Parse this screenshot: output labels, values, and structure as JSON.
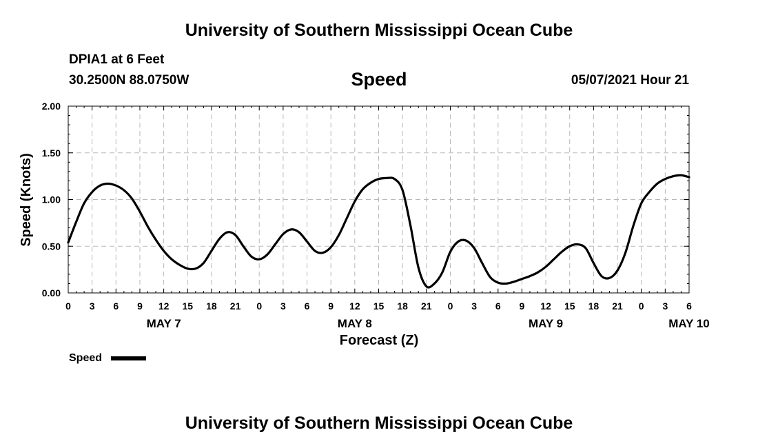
{
  "header": {
    "title": "University of Southern Mississippi Ocean Cube",
    "station": "DPIA1 at 6 Feet",
    "coordinates": "30.2500N  88.0750W",
    "issued": "05/07/2021 Hour 21"
  },
  "footer": {
    "title": "University of Southern Mississippi Ocean Cube"
  },
  "chart_data": {
    "type": "line",
    "title": "Speed",
    "xlabel": "Forecast (Z)",
    "ylabel": "Speed (Knots)",
    "ylim": [
      0,
      2
    ],
    "xlim_hours": [
      0,
      78
    ],
    "grid": true,
    "y_ticks": [
      {
        "value": 0,
        "label": "0.00"
      },
      {
        "value": 0.5,
        "label": "0.50"
      },
      {
        "value": 1.0,
        "label": "1.00"
      },
      {
        "value": 1.5,
        "label": "1.50"
      },
      {
        "value": 2.0,
        "label": "2.00"
      }
    ],
    "x_ticks": [
      "0",
      "3",
      "6",
      "9",
      "12",
      "15",
      "18",
      "21",
      "0",
      "3",
      "6",
      "9",
      "12",
      "15",
      "18",
      "21",
      "0",
      "3",
      "6",
      "9",
      "12",
      "15",
      "18",
      "21",
      "0",
      "3",
      "6"
    ],
    "date_labels": [
      {
        "hour": 12,
        "label": "MAY 7"
      },
      {
        "hour": 36,
        "label": "MAY 8"
      },
      {
        "hour": 60,
        "label": "MAY 9"
      },
      {
        "hour": 78,
        "label": "MAY 10"
      }
    ],
    "legend": {
      "position": "bottom-left",
      "label": "Speed"
    },
    "series": [
      {
        "name": "Speed",
        "color": "#000000",
        "x": [
          0,
          1,
          2,
          3,
          4,
          5,
          6,
          7,
          8,
          9,
          10,
          11,
          12,
          13,
          14,
          15,
          16,
          17,
          18,
          19,
          20,
          21,
          22,
          23,
          24,
          25,
          26,
          27,
          28,
          29,
          30,
          31,
          32,
          33,
          34,
          35,
          36,
          37,
          38,
          39,
          40,
          41,
          42,
          43,
          44,
          45,
          46,
          47,
          48,
          49,
          50,
          51,
          52,
          53,
          54,
          55,
          56,
          57,
          58,
          59,
          60,
          61,
          62,
          63,
          64,
          65,
          66,
          67,
          68,
          69,
          70,
          71,
          72,
          73,
          74,
          75,
          76,
          77,
          78
        ],
        "values": [
          0.54,
          0.76,
          0.96,
          1.08,
          1.15,
          1.17,
          1.15,
          1.1,
          1.01,
          0.87,
          0.71,
          0.57,
          0.45,
          0.36,
          0.3,
          0.26,
          0.26,
          0.32,
          0.45,
          0.58,
          0.65,
          0.62,
          0.5,
          0.39,
          0.36,
          0.41,
          0.52,
          0.63,
          0.68,
          0.65,
          0.55,
          0.45,
          0.43,
          0.49,
          0.62,
          0.8,
          0.98,
          1.11,
          1.18,
          1.22,
          1.23,
          1.22,
          1.1,
          0.72,
          0.27,
          0.07,
          0.1,
          0.22,
          0.44,
          0.55,
          0.56,
          0.48,
          0.32,
          0.17,
          0.11,
          0.1,
          0.12,
          0.15,
          0.18,
          0.22,
          0.28,
          0.36,
          0.44,
          0.5,
          0.52,
          0.48,
          0.32,
          0.18,
          0.16,
          0.24,
          0.43,
          0.72,
          0.96,
          1.08,
          1.17,
          1.22,
          1.25,
          1.26,
          1.24
        ]
      }
    ]
  }
}
